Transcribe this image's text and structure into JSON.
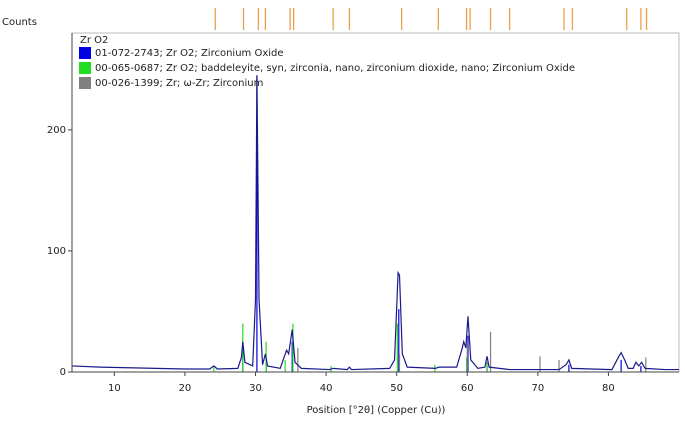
{
  "chart_data": {
    "type": "line",
    "y_label": "Counts",
    "x_label": "Position [°2θ] (Copper (Cu))",
    "legend_title": "Zr O2",
    "xlim": [
      4,
      90
    ],
    "ylim": [
      0,
      280
    ],
    "xticks": [
      10,
      20,
      30,
      40,
      50,
      60,
      70,
      80
    ],
    "yticks": [
      0,
      100,
      200
    ],
    "peak_markers": {
      "color": "#e8a050",
      "x": [
        24.3,
        28.3,
        30.4,
        31.4,
        34.9,
        35.4,
        41.0,
        43.3,
        50.7,
        55.9,
        59.9,
        60.4,
        63.3,
        66.0,
        73.7,
        74.9,
        82.6,
        84.6,
        85.4
      ]
    },
    "pattern": {
      "color": "#1a1a8c",
      "x": [
        4,
        8,
        12,
        16,
        20,
        23.5,
        24.1,
        24.6,
        27.5,
        28.0,
        28.2,
        28.5,
        29.6,
        30.0,
        30.2,
        30.5,
        31.0,
        31.4,
        31.7,
        33.5,
        34.4,
        34.7,
        35.2,
        35.6,
        36.5,
        40.5,
        41.0,
        43.0,
        43.3,
        43.6,
        49.0,
        49.7,
        50.2,
        50.4,
        50.8,
        51.5,
        55.5,
        56.0,
        58.5,
        59.3,
        59.5,
        59.8,
        60.1,
        60.5,
        61.5,
        62.5,
        62.8,
        63.1,
        66.0,
        73.0,
        74.0,
        74.4,
        74.8,
        80.5,
        81.4,
        81.8,
        82.3,
        82.8,
        83.5,
        83.9,
        84.3,
        84.7,
        85.2,
        88.0,
        90.0
      ],
      "values": [
        5,
        4,
        3.5,
        3,
        2.5,
        2.5,
        5,
        2.5,
        3,
        12,
        25,
        8,
        5,
        60,
        245,
        60,
        6,
        15,
        5,
        3,
        18,
        15,
        35,
        8,
        3,
        2,
        3,
        2,
        4,
        2,
        3,
        10,
        82,
        80,
        15,
        4,
        3,
        4,
        4,
        20,
        25,
        20,
        46,
        10,
        3,
        4,
        13,
        4,
        2,
        2,
        6,
        10,
        3,
        2,
        12,
        16,
        10,
        3,
        3,
        8,
        5,
        8,
        3,
        2,
        2
      ]
    },
    "reference_patterns": [
      {
        "name": "01-072-2743; Zr O2; Zirconium Oxide",
        "color": "#0000e0",
        "x": [
          28.2,
          30.2,
          31.5,
          35.2,
          50.3,
          60.1,
          62.8,
          74.4,
          81.8,
          84.6
        ],
        "values": [
          20,
          245,
          12,
          25,
          52,
          30,
          8,
          6,
          10,
          5
        ]
      },
      {
        "name": "00-065-0687; Zr O2; baddeleyite, syn, zirconia, nano, zirconium dioxide, nano; Zirconium Oxide",
        "color": "#22dd22",
        "x": [
          24.1,
          28.2,
          31.5,
          34.2,
          35.3,
          40.7,
          50.1,
          55.4,
          59.9,
          62.8
        ],
        "values": [
          5,
          40,
          25,
          10,
          40,
          5,
          40,
          6,
          12,
          8
        ]
      },
      {
        "name": "00-026-1399; Zr; ω-Zr; Zirconium",
        "color": "#808080",
        "x": [
          36.0,
          50.4,
          60.0,
          63.3,
          70.3,
          73.0,
          85.3
        ],
        "values": [
          20,
          15,
          25,
          33,
          13,
          10,
          12
        ]
      }
    ]
  }
}
